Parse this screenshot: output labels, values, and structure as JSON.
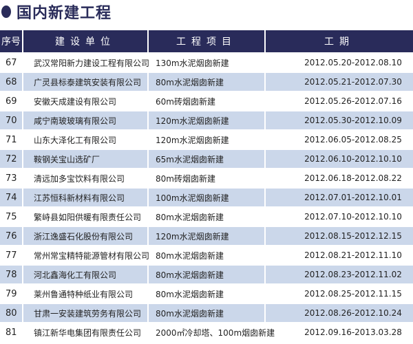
{
  "title": "国内新建工程",
  "headers": [
    "序号",
    "建设单位",
    "工程项目",
    "工期"
  ],
  "rows": [
    {
      "no": "67",
      "company": "武汉常阳新力建设工程有限公司",
      "project": "130m水泥烟囱新建",
      "period": "2012.05.20-2012.08.10"
    },
    {
      "no": "68",
      "company": "广灵县标泰建筑安装有限公司",
      "project": "80m水泥烟囱新建",
      "period": "2012.05.21-2012.07.30"
    },
    {
      "no": "69",
      "company": "安徽天成建设有限公司",
      "project": "60m砖烟囱新建",
      "period": "2012.05.26-2012.07.16"
    },
    {
      "no": "70",
      "company": "咸宁南玻玻璃有限公司",
      "project": "120m水泥烟囱新建",
      "period": "2012.05.30-2012.10.09"
    },
    {
      "no": "71",
      "company": "山东大泽化工有限公司",
      "project": "120m水泥烟囱新建",
      "period": "2012.06.05-2012.08.25"
    },
    {
      "no": "72",
      "company": "鞍钢关宝山选矿厂",
      "project": "65m水泥烟囱新建",
      "period": "2012.06.10-2012.10.10"
    },
    {
      "no": "73",
      "company": "清远加多宝饮料有限公司",
      "project": "80m砖烟囱新建",
      "period": "2012.06.18-2012.08.22"
    },
    {
      "no": "74",
      "company": "江苏恒科新材料有限公司",
      "project": "100m水泥烟囱新建",
      "period": "2012.07.01-2012.10.01"
    },
    {
      "no": "75",
      "company": "繁峙县如阳供暖有限责任公司",
      "project": "80m水泥烟囱新建",
      "period": "2012.07.10-2012.10.10"
    },
    {
      "no": "76",
      "company": "浙江逸盛石化股份有限公司",
      "project": "120m水泥烟囱新建",
      "period": "2012.08.15-2012.12.15"
    },
    {
      "no": "77",
      "company": "常州常宝精特能源管材有限公司",
      "project": "80m水泥烟囱新建",
      "period": "2012.08.21-2012.11.10"
    },
    {
      "no": "78",
      "company": "河北鑫海化工有限公司",
      "project": "80m水泥烟囱新建",
      "period": "2012.08.23-2012.11.02"
    },
    {
      "no": "79",
      "company": "莱州鲁通特种纸业有限公司",
      "project": "80m水泥烟囱新建",
      "period": "2012.08.25-2012.11.15"
    },
    {
      "no": "80",
      "company": "甘肃一安装建筑劳务有限公司",
      "project": "80m水泥烟囱新建",
      "period": "2012.08.26-2012.10.24"
    },
    {
      "no": "81",
      "company": "镇江新华电集团有限责任公司",
      "project": "2000㎡冷却塔、100m烟囱新建",
      "period": "2012.09.16-2013.03.28"
    }
  ]
}
